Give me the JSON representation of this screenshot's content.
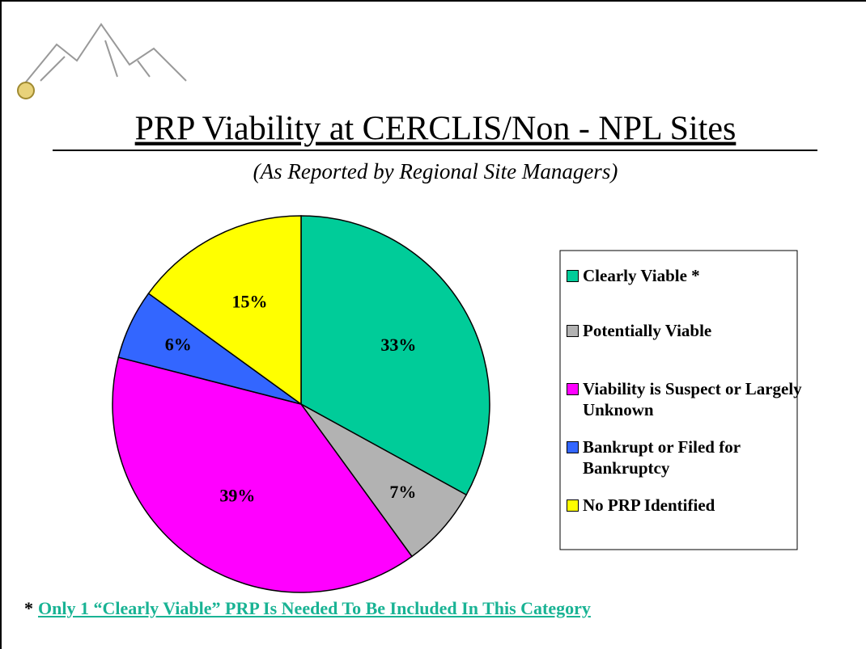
{
  "chart_data": {
    "type": "pie",
    "title": "PRP Viability at CERCLIS/Non - NPL Sites",
    "subtitle": "(As Reported by Regional Site Managers)",
    "categories": [
      "Clearly Viable *",
      "Potentially Viable",
      "Viability is Suspect or Largely Unknown",
      "Bankrupt or Filed for Bankruptcy",
      "No PRP Identified"
    ],
    "values": [
      33,
      7,
      39,
      6,
      15
    ],
    "value_labels": [
      "33%",
      "7%",
      "39%",
      "6%",
      "15%"
    ],
    "colors": [
      "#00cc99",
      "#b2b2b2",
      "#ff00ff",
      "#3366ff",
      "#ffff00"
    ],
    "legend": "right",
    "footnote": {
      "marker": "*",
      "text": "Only 1 “Clearly Viable” PRP Is Needed To Be Included In This Category"
    }
  }
}
